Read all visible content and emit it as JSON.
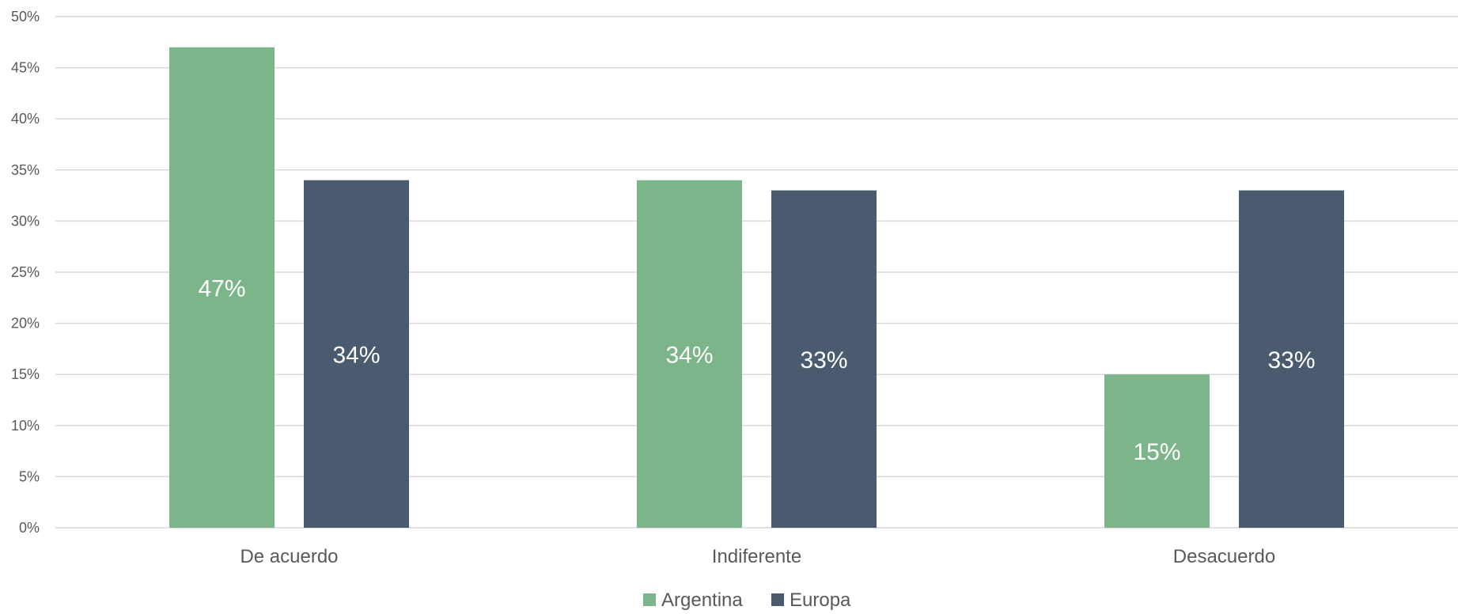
{
  "chart_data": {
    "type": "bar",
    "categories": [
      "De acuerdo",
      "Indiferente",
      "Desacuerdo"
    ],
    "series": [
      {
        "name": "Argentina",
        "color": "#7db58b",
        "values": [
          47,
          34,
          15
        ],
        "labels": [
          "47%",
          "34%",
          "15%"
        ]
      },
      {
        "name": "Europa",
        "color": "#4a5b70",
        "values": [
          34,
          33,
          33
        ],
        "labels": [
          "34%",
          "33%",
          "33%"
        ]
      }
    ],
    "ylim": [
      0,
      50
    ],
    "yticks": [
      0,
      5,
      10,
      15,
      20,
      25,
      30,
      35,
      40,
      45,
      50
    ],
    "ytick_labels": [
      "0%",
      "5%",
      "10%",
      "15%",
      "20%",
      "25%",
      "30%",
      "35%",
      "40%",
      "45%",
      "50%"
    ],
    "grid": true,
    "legend_position": "bottom",
    "colors": {
      "gridline": "#d9d9d9",
      "axis_text": "#595959",
      "data_label": "#ffffff"
    }
  }
}
